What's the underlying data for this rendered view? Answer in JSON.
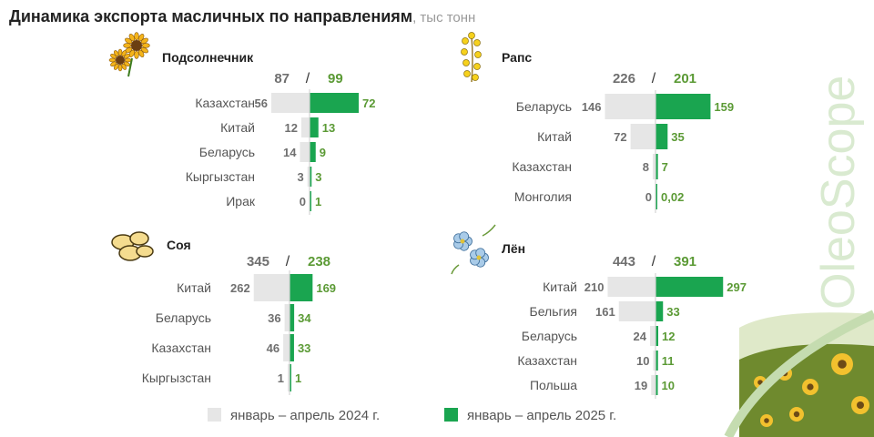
{
  "title": "Динамика экспорта масличных по направлениям",
  "title_unit": ", тыс тонн",
  "brand": "OleoScope",
  "colors": {
    "y2024": "#e6e6e6",
    "y2025": "#1aa550",
    "axis": "#d4d4d4",
    "text": "#555555",
    "val2025": "#5b9a35",
    "val2024": "#6f6f6f"
  },
  "legend": {
    "y2024": "январь – апрель 2024 г.",
    "y2025": "январь – апрель 2025 г."
  },
  "chart_data": [
    {
      "type": "bar",
      "title": "Подсолнечник",
      "icon": "sunflower",
      "total_2024": "87",
      "total_2025": "99",
      "categories": [
        "Казахстан",
        "Китай",
        "Беларусь",
        "Кыргызстан",
        "Ирак"
      ],
      "series": [
        {
          "name": "январь – апрель 2024 г.",
          "values": [
            56,
            12,
            14,
            3,
            0
          ],
          "labels": [
            "56",
            "12",
            "14",
            "3",
            "0"
          ]
        },
        {
          "name": "январь – апрель 2025 г.",
          "values": [
            72,
            13,
            9,
            3,
            1
          ],
          "labels": [
            "72",
            "13",
            "9",
            "3",
            "1"
          ]
        }
      ]
    },
    {
      "type": "bar",
      "title": "Рапс",
      "icon": "rapeseed",
      "total_2024": "226",
      "total_2025": "201",
      "categories": [
        "Беларусь",
        "Китай",
        "Казахстан",
        "Монголия"
      ],
      "series": [
        {
          "name": "январь – апрель 2024 г.",
          "values": [
            146,
            72,
            8,
            0
          ],
          "labels": [
            "146",
            "72",
            "8",
            "0"
          ]
        },
        {
          "name": "январь – апрель 2025 г.",
          "values": [
            159,
            35,
            7,
            0.02
          ],
          "labels": [
            "159",
            "35",
            "7",
            "0,02"
          ]
        }
      ]
    },
    {
      "type": "bar",
      "title": "Соя",
      "icon": "soybean",
      "total_2024": "345",
      "total_2025": "238",
      "categories": [
        "Китай",
        "Беларусь",
        "Казахстан",
        "Кыргызстан"
      ],
      "series": [
        {
          "name": "январь – апрель 2024 г.",
          "values": [
            262,
            36,
            46,
            1
          ],
          "labels": [
            "262",
            "36",
            "46",
            "1"
          ]
        },
        {
          "name": "январь – апрель 2025 г.",
          "values": [
            169,
            34,
            33,
            1
          ],
          "labels": [
            "169",
            "34",
            "33",
            "1"
          ]
        }
      ]
    },
    {
      "type": "bar",
      "title": "Лён",
      "icon": "flax",
      "total_2024": "443",
      "total_2025": "391",
      "categories": [
        "Китай",
        "Бельгия",
        "Беларусь",
        "Казахстан",
        "Польша"
      ],
      "series": [
        {
          "name": "январь – апрель 2024 г.",
          "values": [
            210,
            161,
            24,
            10,
            19
          ],
          "labels": [
            "210",
            "161",
            "24",
            "10",
            "19"
          ]
        },
        {
          "name": "январь – апрель 2025 г.",
          "values": [
            297,
            33,
            12,
            11,
            10
          ],
          "labels": [
            "297",
            "33",
            "12",
            "11",
            "10"
          ]
        }
      ]
    }
  ]
}
